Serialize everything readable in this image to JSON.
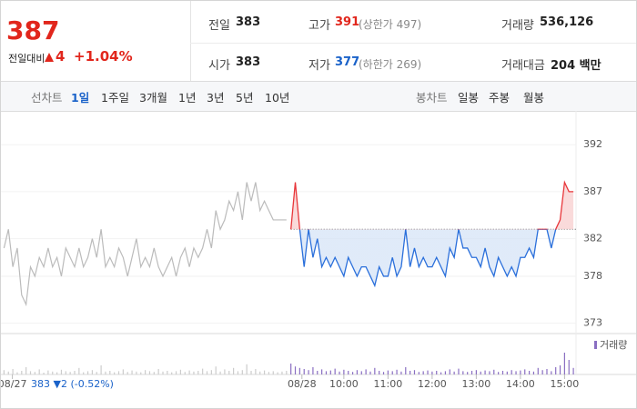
{
  "quote": {
    "price": "387",
    "change_label": "전일대비",
    "change": "4",
    "change_pct": "+1.04%"
  },
  "stats": [
    {
      "label": "전일",
      "value": "383"
    },
    {
      "label": "고가",
      "value": "391",
      "note": "(상한가 497)"
    },
    {
      "label": "거래량",
      "value": "536,126"
    },
    {
      "label": "시가",
      "value": "383"
    },
    {
      "label": "저가",
      "value": "377",
      "note": "(하한가 269)"
    },
    {
      "label": "거래대금",
      "value": "204 백만"
    }
  ],
  "tabs": {
    "line_label": "선차트",
    "line": [
      "1일",
      "1주일",
      "3개월",
      "1년",
      "3년",
      "5년",
      "10년"
    ],
    "candle_label": "봉차트",
    "candle": [
      "일봉",
      "주봉",
      "월봉"
    ]
  },
  "chart_data": {
    "type": "line",
    "xlim": [
      2.23,
      15.26
    ],
    "ylim": [
      371.9,
      395.6
    ],
    "y2lim": [
      0,
      100
    ],
    "yticks": [
      373,
      378,
      382,
      387,
      392
    ],
    "xticks": [
      {
        "value": 2.49,
        "label": "08/27"
      },
      {
        "value": 9.05,
        "label": "08/28"
      },
      {
        "value": 10,
        "label": "10:00"
      },
      {
        "value": 11,
        "label": "11:00"
      },
      {
        "value": 12,
        "label": "12:00"
      },
      {
        "value": 13,
        "label": "13:00"
      },
      {
        "value": 14,
        "label": "14:00"
      },
      {
        "value": 15,
        "label": "15:00"
      }
    ],
    "grid": true,
    "baseline": 383,
    "prev_close_note": "383 ▼2 (-0.52%)",
    "volume_label": "거래량",
    "volume_color": "#8a6fc2",
    "series": [
      {
        "color": "#bbbbbb",
        "volume_color": "#cccccc",
        "x": [
          2.3,
          2.4,
          2.5,
          2.6,
          2.7,
          2.8,
          2.9,
          3.0,
          3.1,
          3.2,
          3.3,
          3.4,
          3.5,
          3.6,
          3.7,
          3.8,
          3.9,
          4.0,
          4.1,
          4.2,
          4.3,
          4.4,
          4.5,
          4.6,
          4.7,
          4.8,
          4.9,
          5.0,
          5.1,
          5.2,
          5.3,
          5.4,
          5.5,
          5.6,
          5.7,
          5.8,
          5.9,
          6.0,
          6.1,
          6.2,
          6.3,
          6.4,
          6.5,
          6.6,
          6.7,
          6.8,
          6.9,
          7.0,
          7.1,
          7.2,
          7.3,
          7.4,
          7.5,
          7.6,
          7.7,
          7.8,
          7.9,
          8.0,
          8.1,
          8.2,
          8.3,
          8.4,
          8.5,
          8.6,
          8.7
        ],
        "values": [
          381,
          383,
          379,
          381,
          376,
          375,
          379,
          378,
          380,
          379,
          381,
          379,
          380,
          378,
          381,
          380,
          379,
          381,
          379,
          380,
          382,
          380,
          383,
          379,
          380,
          379,
          381,
          380,
          378,
          380,
          382,
          379,
          380,
          379,
          381,
          379,
          378,
          379,
          380,
          378,
          380,
          381,
          379,
          381,
          380,
          381,
          383,
          381,
          385,
          383,
          384,
          386,
          385,
          387,
          384,
          388,
          386,
          388,
          385,
          386,
          385,
          384,
          384,
          384,
          384
        ],
        "volumes": [
          12,
          8,
          15,
          6,
          10,
          20,
          9,
          7,
          14,
          5,
          11,
          8,
          6,
          13,
          9,
          7,
          10,
          18,
          6,
          9,
          12,
          7,
          25,
          8,
          10,
          6,
          9,
          14,
          7,
          11,
          8,
          6,
          12,
          9,
          7,
          15,
          8,
          10,
          6,
          9,
          13,
          7,
          11,
          8,
          10,
          16,
          9,
          12,
          22,
          8,
          14,
          10,
          18,
          9,
          12,
          28,
          10,
          15,
          8,
          11,
          7,
          9,
          6,
          8,
          10
        ]
      },
      {
        "color_up": "#e8363a",
        "color_down": "#2a6fdb",
        "fill_up": "#f7caca",
        "fill_down": "#d3e2f6",
        "x": [
          8.8,
          8.9,
          9.0,
          9.1,
          9.2,
          9.3,
          9.4,
          9.5,
          9.6,
          9.7,
          9.8,
          9.9,
          10.0,
          10.1,
          10.2,
          10.3,
          10.4,
          10.5,
          10.6,
          10.7,
          10.8,
          10.9,
          11.0,
          11.1,
          11.2,
          11.3,
          11.4,
          11.5,
          11.6,
          11.7,
          11.8,
          11.9,
          12.0,
          12.1,
          12.2,
          12.3,
          12.4,
          12.5,
          12.6,
          12.7,
          12.8,
          12.9,
          13.0,
          13.1,
          13.2,
          13.3,
          13.4,
          13.5,
          13.6,
          13.7,
          13.8,
          13.9,
          14.0,
          14.1,
          14.2,
          14.3,
          14.4,
          14.5,
          14.6,
          14.7,
          14.8,
          14.9,
          15.0,
          15.1,
          15.2
        ],
        "values": [
          383,
          388,
          383,
          379,
          383,
          380,
          382,
          379,
          380,
          379,
          380,
          379,
          378,
          380,
          379,
          378,
          379,
          379,
          378,
          377,
          379,
          378,
          378,
          380,
          378,
          379,
          383,
          379,
          381,
          379,
          380,
          379,
          379,
          380,
          379,
          378,
          381,
          380,
          383,
          381,
          381,
          380,
          380,
          379,
          381,
          379,
          378,
          380,
          379,
          378,
          379,
          378,
          380,
          380,
          381,
          380,
          383,
          383,
          383,
          381,
          383,
          384,
          388,
          387,
          387
        ],
        "volumes": [
          30,
          22,
          18,
          15,
          12,
          20,
          10,
          14,
          9,
          11,
          16,
          8,
          13,
          10,
          7,
          12,
          9,
          14,
          8,
          18,
          10,
          7,
          11,
          9,
          13,
          8,
          20,
          10,
          12,
          7,
          9,
          11,
          8,
          10,
          6,
          9,
          14,
          8,
          16,
          9,
          7,
          10,
          12,
          8,
          11,
          9,
          13,
          7,
          10,
          8,
          12,
          9,
          11,
          14,
          10,
          8,
          18,
          12,
          15,
          9,
          20,
          25,
          60,
          40,
          18
        ]
      }
    ]
  }
}
